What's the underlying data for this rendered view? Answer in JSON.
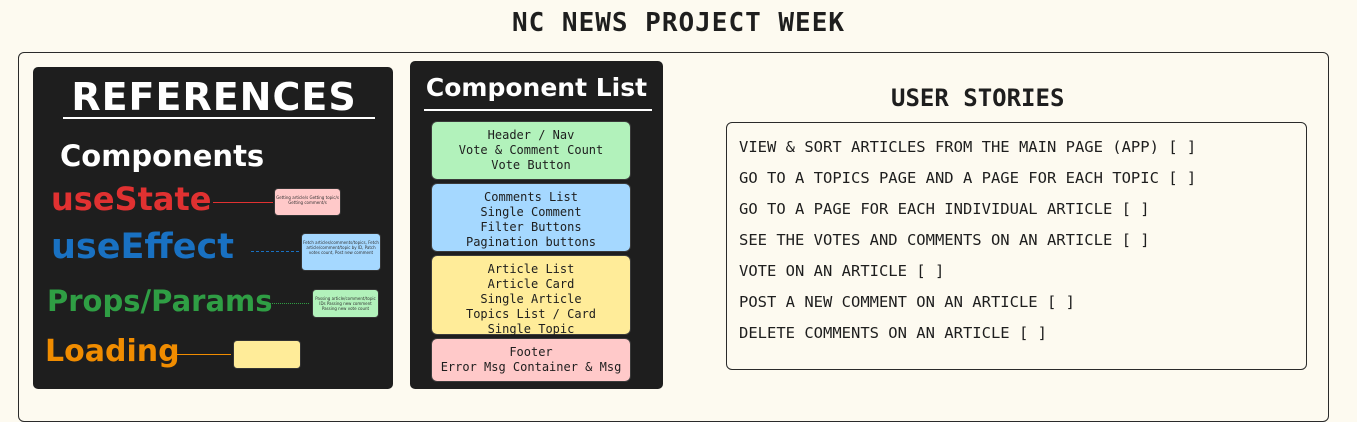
{
  "page_title": "NC NEWS PROJECT WEEK",
  "references": {
    "title": "REFERENCES",
    "items": [
      {
        "label": "Components",
        "color": "#ffffff"
      },
      {
        "label": "useState",
        "color": "#e03131",
        "box_fill": "#ffc9c9",
        "box_text": "Getting article/s Getting topic/s Getting comment/s"
      },
      {
        "label": "useEffect",
        "color": "#1971c2",
        "box_fill": "#a5d8ff",
        "box_text": "Fetch articles/comments/topics, Fetch article/comment/topic by ID, Patch votes count, Post new comment"
      },
      {
        "label": "Props/Params",
        "color": "#2f9e44",
        "box_fill": "#b2f2bb",
        "box_text": "Passing article/comment/topic IDs Passing new comment Passing new vote count"
      },
      {
        "label": "Loading",
        "color": "#f08c00",
        "box_fill": "#ffec99",
        "box_text": ""
      }
    ]
  },
  "component_list": {
    "title": "Component List",
    "groups": [
      {
        "fill": "#b2f2bb",
        "items": [
          "Header / Nav",
          "Vote & Comment Count",
          "Vote Button"
        ]
      },
      {
        "fill": "#a5d8ff",
        "items": [
          "Comments List",
          "Single Comment",
          "Filter Buttons",
          "Pagination buttons"
        ]
      },
      {
        "fill": "#ffec99",
        "items": [
          "Article List",
          "Article Card",
          "Single Article",
          "Topics List / Card",
          "Single Topic"
        ]
      },
      {
        "fill": "#ffc9c9",
        "items": [
          "Footer",
          "Error Msg Container & Msg"
        ]
      }
    ]
  },
  "user_stories": {
    "title": "USER STORIES",
    "items": [
      "VIEW & SORT ARTICLES FROM THE MAIN PAGE (APP) [  ]",
      "GO TO A TOPICS PAGE AND A PAGE FOR EACH TOPIC [  ]",
      "GO TO A PAGE FOR EACH INDIVIDUAL ARTICLE [  ]",
      "SEE THE VOTES AND COMMENTS ON AN ARTICLE [  ]",
      "VOTE ON AN ARTICLE [  ]",
      "POST A NEW COMMENT ON AN ARTICLE [  ]",
      "DELETE COMMENTS ON AN ARTICLE [  ]"
    ]
  }
}
